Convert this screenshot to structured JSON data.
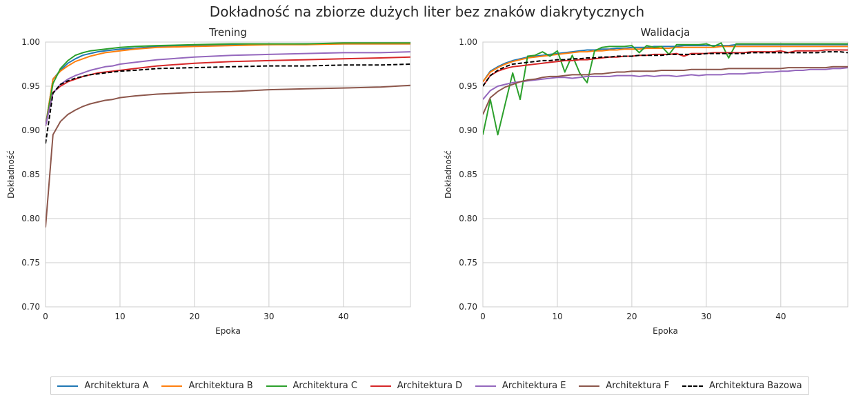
{
  "title": "Dokładność na zbiorze dużych liter bez znaków diakrytycznych",
  "chart_data": [
    {
      "type": "line",
      "title": "Trening",
      "xlabel": "Epoka",
      "ylabel": "Dokładność",
      "xlim": [
        0,
        49
      ],
      "ylim": [
        0.7,
        1.0
      ],
      "xticks": [
        0,
        10,
        20,
        30,
        40
      ],
      "yticks": [
        0.7,
        0.75,
        0.8,
        0.85,
        0.9,
        0.95,
        1.0
      ],
      "grid": true,
      "x": [
        0,
        1,
        2,
        3,
        4,
        5,
        6,
        7,
        8,
        9,
        10,
        12,
        15,
        20,
        25,
        30,
        35,
        40,
        45,
        49
      ],
      "series": [
        {
          "name": "Architektura A",
          "color": "#1f77b4",
          "dashed": false,
          "values": [
            0.905,
            0.958,
            0.968,
            0.976,
            0.981,
            0.985,
            0.987,
            0.989,
            0.99,
            0.991,
            0.992,
            0.993,
            0.995,
            0.996,
            0.997,
            0.997,
            0.998,
            0.998,
            0.998,
            0.998
          ]
        },
        {
          "name": "Architektura B",
          "color": "#ff7f0e",
          "dashed": false,
          "values": [
            0.905,
            0.958,
            0.967,
            0.973,
            0.978,
            0.981,
            0.984,
            0.986,
            0.988,
            0.989,
            0.99,
            0.992,
            0.994,
            0.995,
            0.996,
            0.997,
            0.997,
            0.998,
            0.998,
            0.998
          ]
        },
        {
          "name": "Architektura C",
          "color": "#2ca02c",
          "dashed": false,
          "values": [
            0.905,
            0.953,
            0.97,
            0.979,
            0.985,
            0.988,
            0.99,
            0.991,
            0.992,
            0.993,
            0.994,
            0.995,
            0.996,
            0.997,
            0.998,
            0.998,
            0.998,
            0.999,
            0.999,
            0.999
          ]
        },
        {
          "name": "Architektura D",
          "color": "#d62728",
          "dashed": false,
          "values": [
            0.905,
            0.943,
            0.95,
            0.955,
            0.958,
            0.961,
            0.963,
            0.965,
            0.966,
            0.967,
            0.968,
            0.97,
            0.973,
            0.976,
            0.978,
            0.979,
            0.98,
            0.981,
            0.982,
            0.983
          ]
        },
        {
          "name": "Architektura E",
          "color": "#9467bd",
          "dashed": false,
          "values": [
            0.905,
            0.942,
            0.952,
            0.958,
            0.962,
            0.965,
            0.968,
            0.97,
            0.972,
            0.973,
            0.975,
            0.977,
            0.98,
            0.983,
            0.985,
            0.986,
            0.987,
            0.988,
            0.988,
            0.989
          ]
        },
        {
          "name": "Architektura F",
          "color": "#8c564b",
          "dashed": false,
          "values": [
            0.79,
            0.895,
            0.91,
            0.918,
            0.923,
            0.927,
            0.93,
            0.932,
            0.934,
            0.935,
            0.937,
            0.939,
            0.941,
            0.943,
            0.944,
            0.946,
            0.947,
            0.948,
            0.949,
            0.951
          ]
        },
        {
          "name": "Architektura Bazowa",
          "color": "#000000",
          "dashed": true,
          "values": [
            0.885,
            0.942,
            0.952,
            0.956,
            0.959,
            0.961,
            0.963,
            0.964,
            0.965,
            0.966,
            0.967,
            0.968,
            0.97,
            0.971,
            0.972,
            0.973,
            0.973,
            0.974,
            0.974,
            0.975
          ]
        }
      ]
    },
    {
      "type": "line",
      "title": "Walidacja",
      "xlabel": "Epoka",
      "ylabel": "Dokładność",
      "xlim": [
        0,
        49
      ],
      "ylim": [
        0.7,
        1.0
      ],
      "xticks": [
        0,
        10,
        20,
        30,
        40
      ],
      "yticks": [
        0.7,
        0.75,
        0.8,
        0.85,
        0.9,
        0.95,
        1.0
      ],
      "grid": true,
      "x": [
        0,
        1,
        2,
        3,
        4,
        5,
        6,
        7,
        8,
        9,
        10,
        11,
        12,
        13,
        14,
        15,
        16,
        17,
        18,
        19,
        20,
        21,
        22,
        23,
        24,
        25,
        26,
        27,
        28,
        29,
        30,
        31,
        32,
        33,
        34,
        35,
        36,
        37,
        38,
        39,
        40,
        41,
        42,
        43,
        44,
        45,
        46,
        47,
        48,
        49
      ],
      "series": [
        {
          "name": "Architektura A",
          "color": "#1f77b4",
          "dashed": false,
          "values": [
            0.955,
            0.967,
            0.972,
            0.976,
            0.979,
            0.981,
            0.983,
            0.984,
            0.985,
            0.986,
            0.987,
            0.988,
            0.989,
            0.99,
            0.991,
            0.991,
            0.992,
            0.992,
            0.993,
            0.993,
            0.994,
            0.994,
            0.994,
            0.995,
            0.995,
            0.995,
            0.995,
            0.996,
            0.996,
            0.996,
            0.996,
            0.996,
            0.996,
            0.996,
            0.997,
            0.997,
            0.997,
            0.997,
            0.997,
            0.997,
            0.997,
            0.997,
            0.997,
            0.997,
            0.997,
            0.997,
            0.997,
            0.997,
            0.997,
            0.997
          ]
        },
        {
          "name": "Architektura B",
          "color": "#ff7f0e",
          "dashed": false,
          "values": [
            0.955,
            0.966,
            0.971,
            0.975,
            0.978,
            0.98,
            0.982,
            0.983,
            0.984,
            0.985,
            0.986,
            0.987,
            0.988,
            0.989,
            0.989,
            0.99,
            0.99,
            0.991,
            0.991,
            0.992,
            0.992,
            0.992,
            0.993,
            0.993,
            0.993,
            0.993,
            0.994,
            0.994,
            0.994,
            0.994,
            0.994,
            0.994,
            0.995,
            0.995,
            0.995,
            0.995,
            0.995,
            0.995,
            0.995,
            0.995,
            0.995,
            0.995,
            0.995,
            0.995,
            0.995,
            0.995,
            0.995,
            0.995,
            0.995,
            0.995
          ]
        },
        {
          "name": "Architektura C",
          "color": "#2ca02c",
          "dashed": false,
          "values": [
            0.895,
            0.935,
            0.895,
            0.93,
            0.965,
            0.935,
            0.984,
            0.985,
            0.989,
            0.984,
            0.99,
            0.966,
            0.985,
            0.965,
            0.954,
            0.99,
            0.994,
            0.995,
            0.995,
            0.995,
            0.996,
            0.988,
            0.996,
            0.994,
            0.995,
            0.986,
            0.997,
            0.997,
            0.997,
            0.997,
            0.998,
            0.995,
            0.999,
            0.982,
            0.998,
            0.998,
            0.998,
            0.998,
            0.998,
            0.998,
            0.998,
            0.998,
            0.998,
            0.998,
            0.998,
            0.998,
            0.998,
            0.998,
            0.998,
            0.998
          ]
        },
        {
          "name": "Architektura D",
          "color": "#d62728",
          "dashed": false,
          "values": [
            0.95,
            0.962,
            0.967,
            0.97,
            0.972,
            0.973,
            0.974,
            0.975,
            0.976,
            0.977,
            0.978,
            0.979,
            0.979,
            0.98,
            0.98,
            0.981,
            0.982,
            0.983,
            0.983,
            0.984,
            0.984,
            0.985,
            0.985,
            0.986,
            0.986,
            0.986,
            0.987,
            0.984,
            0.987,
            0.987,
            0.987,
            0.988,
            0.988,
            0.988,
            0.988,
            0.988,
            0.989,
            0.989,
            0.989,
            0.989,
            0.99,
            0.988,
            0.99,
            0.99,
            0.99,
            0.99,
            0.991,
            0.991,
            0.991,
            0.991
          ]
        },
        {
          "name": "Architektura E",
          "color": "#9467bd",
          "dashed": false,
          "values": [
            0.935,
            0.945,
            0.95,
            0.952,
            0.954,
            0.955,
            0.956,
            0.957,
            0.958,
            0.959,
            0.96,
            0.96,
            0.959,
            0.96,
            0.961,
            0.961,
            0.961,
            0.961,
            0.962,
            0.962,
            0.962,
            0.961,
            0.962,
            0.961,
            0.962,
            0.962,
            0.961,
            0.962,
            0.963,
            0.962,
            0.963,
            0.963,
            0.963,
            0.964,
            0.964,
            0.964,
            0.965,
            0.965,
            0.966,
            0.966,
            0.967,
            0.967,
            0.968,
            0.968,
            0.969,
            0.969,
            0.969,
            0.97,
            0.97,
            0.971
          ]
        },
        {
          "name": "Architektura F",
          "color": "#8c564b",
          "dashed": false,
          "values": [
            0.918,
            0.937,
            0.944,
            0.949,
            0.952,
            0.955,
            0.957,
            0.958,
            0.96,
            0.961,
            0.961,
            0.962,
            0.963,
            0.963,
            0.963,
            0.964,
            0.964,
            0.965,
            0.966,
            0.966,
            0.967,
            0.967,
            0.967,
            0.967,
            0.968,
            0.968,
            0.968,
            0.968,
            0.969,
            0.969,
            0.969,
            0.969,
            0.969,
            0.97,
            0.97,
            0.97,
            0.97,
            0.97,
            0.97,
            0.97,
            0.97,
            0.971,
            0.971,
            0.971,
            0.971,
            0.971,
            0.971,
            0.972,
            0.972,
            0.972
          ]
        },
        {
          "name": "Architektura Bazowa",
          "color": "#000000",
          "dashed": true,
          "values": [
            0.95,
            0.962,
            0.968,
            0.972,
            0.975,
            0.976,
            0.977,
            0.978,
            0.979,
            0.979,
            0.98,
            0.98,
            0.981,
            0.981,
            0.982,
            0.982,
            0.983,
            0.983,
            0.984,
            0.984,
            0.984,
            0.985,
            0.985,
            0.985,
            0.985,
            0.986,
            0.986,
            0.986,
            0.986,
            0.986,
            0.987,
            0.987,
            0.987,
            0.987,
            0.987,
            0.987,
            0.988,
            0.988,
            0.988,
            0.988,
            0.988,
            0.988,
            0.988,
            0.988,
            0.988,
            0.988,
            0.989,
            0.989,
            0.989,
            0.988
          ]
        }
      ]
    }
  ],
  "legend": {
    "placement": "bottom",
    "items": [
      {
        "label": "Architektura A",
        "color": "#1f77b4",
        "dashed": false
      },
      {
        "label": "Architektura B",
        "color": "#ff7f0e",
        "dashed": false
      },
      {
        "label": "Architektura C",
        "color": "#2ca02c",
        "dashed": false
      },
      {
        "label": "Architektura D",
        "color": "#d62728",
        "dashed": false
      },
      {
        "label": "Architektura E",
        "color": "#9467bd",
        "dashed": false
      },
      {
        "label": "Architektura F",
        "color": "#8c564b",
        "dashed": false
      },
      {
        "label": "Architektura Bazowa",
        "color": "#000000",
        "dashed": true
      }
    ]
  }
}
